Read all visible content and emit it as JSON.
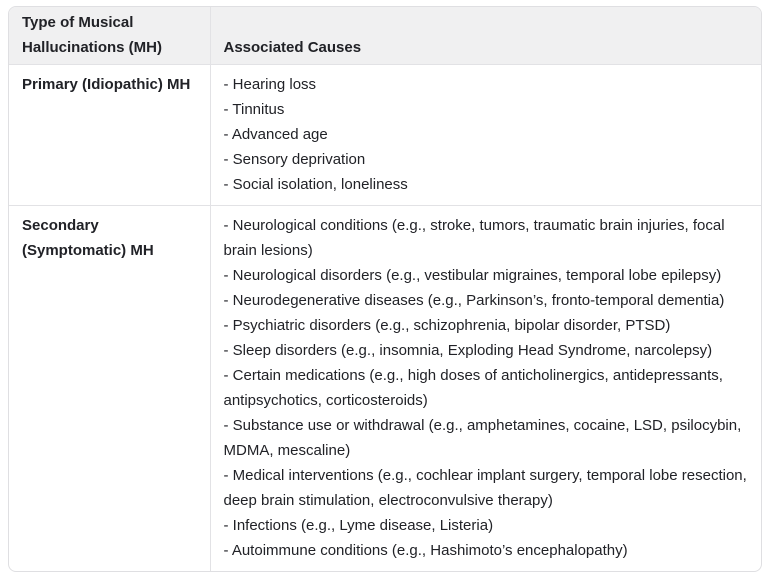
{
  "table": {
    "columns": [
      {
        "label": "Type of Musical Hallucinations (MH)"
      },
      {
        "label": "Associated Causes"
      }
    ],
    "rows": [
      {
        "type": "Primary (Idiopathic) MH",
        "causes": [
          "- Hearing loss",
          "- Tinnitus",
          "- Advanced age",
          "- Sensory deprivation",
          "- Social isolation, loneliness"
        ]
      },
      {
        "type": "Secondary (Symptomatic) MH",
        "causes": [
          "- Neurological conditions (e.g., stroke, tumors, traumatic brain injuries, focal brain lesions)",
          "- Neurological disorders (e.g., vestibular migraines, temporal lobe epilepsy)",
          "- Neurodegenerative diseases (e.g., Parkinson’s, fronto-temporal dementia)",
          "- Psychiatric disorders (e.g., schizophrenia, bipolar disorder, PTSD)",
          "- Sleep disorders (e.g., insomnia, Exploding Head Syndrome, narcolepsy)",
          "- Certain medications (e.g., high doses of anticholinergics, antidepressants, antipsychotics, corticosteroids)",
          "- Substance use or withdrawal (e.g., amphetamines, cocaine, LSD, psilocybin, MDMA, mescaline)",
          "- Medical interventions (e.g., cochlear implant surgery, temporal lobe resection, deep brain stimulation, electroconvulsive therapy)",
          "- Infections (e.g., Lyme disease, Listeria)",
          "- Autoimmune conditions (e.g., Hashimoto’s encephalopathy)"
        ]
      }
    ],
    "colors": {
      "header_bg": "#f0f0f1",
      "outer_border": "#dfdfe2",
      "inner_border": "#e2e2e5",
      "text": "#212227"
    }
  }
}
